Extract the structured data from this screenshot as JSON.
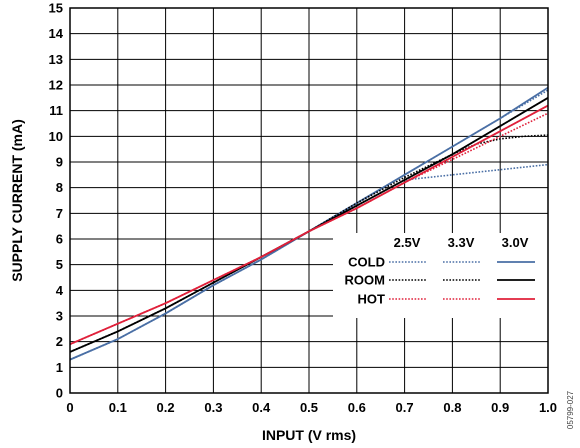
{
  "chart_data": {
    "type": "line",
    "xlabel": "INPUT (V rms)",
    "ylabel": "SUPPLY CURRENT (mA)",
    "xlim": [
      0,
      1.0
    ],
    "ylim": [
      0,
      15
    ],
    "x_ticks": [
      "0",
      "0.1",
      "0.2",
      "0.3",
      "0.4",
      "0.5",
      "0.6",
      "0.7",
      "0.8",
      "0.9",
      "1.0"
    ],
    "y_ticks": [
      "0",
      "1",
      "2",
      "3",
      "4",
      "5",
      "6",
      "7",
      "8",
      "9",
      "10",
      "11",
      "12",
      "13",
      "14",
      "15"
    ],
    "grid": true,
    "legend": {
      "placement": "center-right",
      "column_headers": [
        "2.5V",
        "3.3V",
        "3.0V"
      ],
      "row_labels": [
        "COLD",
        "ROOM",
        "HOT"
      ]
    },
    "colors": {
      "cold": "#4a6fa5",
      "room": "#000000",
      "hot": "#e0203a"
    },
    "series": [
      {
        "temperature": "COLD",
        "supply": "2.5V",
        "style": "dotted",
        "x": [
          0,
          0.1,
          0.2,
          0.3,
          0.4,
          0.5,
          0.6,
          0.7,
          0.75,
          0.8,
          0.9,
          1.0
        ],
        "y": [
          1.3,
          2.1,
          3.1,
          4.2,
          5.2,
          6.3,
          7.3,
          8.3,
          8.4,
          8.5,
          8.7,
          8.9
        ]
      },
      {
        "temperature": "COLD",
        "supply": "3.3V",
        "style": "dotted",
        "x": [
          0,
          0.1,
          0.2,
          0.3,
          0.4,
          0.5,
          0.6,
          0.7,
          0.8,
          0.9,
          1.0
        ],
        "y": [
          1.3,
          2.1,
          3.1,
          4.2,
          5.2,
          6.3,
          7.4,
          8.5,
          9.6,
          10.7,
          11.8
        ]
      },
      {
        "temperature": "COLD",
        "supply": "3.0V",
        "style": "solid",
        "x": [
          0,
          0.1,
          0.2,
          0.3,
          0.4,
          0.5,
          0.6,
          0.7,
          0.8,
          0.9,
          1.0
        ],
        "y": [
          1.3,
          2.1,
          3.1,
          4.2,
          5.2,
          6.3,
          7.4,
          8.5,
          9.6,
          10.7,
          11.9
        ]
      },
      {
        "temperature": "ROOM",
        "supply": "2.5V",
        "style": "dotted",
        "x": [
          0,
          0.1,
          0.2,
          0.3,
          0.4,
          0.5,
          0.6,
          0.7,
          0.8,
          0.85,
          0.9,
          0.95,
          1.0
        ],
        "y": [
          1.6,
          2.4,
          3.3,
          4.3,
          5.3,
          6.3,
          7.4,
          8.4,
          9.3,
          9.7,
          9.9,
          10.0,
          10.05
        ]
      },
      {
        "temperature": "ROOM",
        "supply": "3.3V",
        "style": "dotted",
        "x": [
          0,
          0.1,
          0.2,
          0.3,
          0.4,
          0.5,
          0.6,
          0.7,
          0.8,
          0.9,
          1.0
        ],
        "y": [
          1.6,
          2.4,
          3.3,
          4.3,
          5.3,
          6.3,
          7.3,
          8.3,
          9.3,
          10.4,
          11.5
        ]
      },
      {
        "temperature": "ROOM",
        "supply": "3.0V",
        "style": "solid",
        "x": [
          0,
          0.1,
          0.2,
          0.3,
          0.4,
          0.5,
          0.6,
          0.7,
          0.8,
          0.9,
          1.0
        ],
        "y": [
          1.6,
          2.4,
          3.3,
          4.3,
          5.3,
          6.3,
          7.3,
          8.3,
          9.3,
          10.4,
          11.5
        ]
      },
      {
        "temperature": "HOT",
        "supply": "2.5V",
        "style": "dotted",
        "x": [
          0,
          0.1,
          0.2,
          0.3,
          0.4,
          0.5,
          0.6,
          0.7,
          0.8,
          0.9,
          1.0
        ],
        "y": [
          1.9,
          2.7,
          3.5,
          4.4,
          5.3,
          6.3,
          7.2,
          8.2,
          9.1,
          10.0,
          10.9
        ]
      },
      {
        "temperature": "HOT",
        "supply": "3.3V",
        "style": "dotted",
        "x": [
          0,
          0.1,
          0.2,
          0.3,
          0.4,
          0.5,
          0.6,
          0.7,
          0.8,
          0.9,
          1.0
        ],
        "y": [
          1.9,
          2.7,
          3.5,
          4.4,
          5.3,
          6.3,
          7.2,
          8.2,
          9.2,
          10.2,
          11.2
        ]
      },
      {
        "temperature": "HOT",
        "supply": "3.0V",
        "style": "solid",
        "x": [
          0,
          0.1,
          0.2,
          0.3,
          0.4,
          0.5,
          0.6,
          0.7,
          0.8,
          0.9,
          1.0
        ],
        "y": [
          1.9,
          2.7,
          3.5,
          4.4,
          5.3,
          6.3,
          7.2,
          8.2,
          9.2,
          10.2,
          11.2
        ]
      }
    ]
  },
  "figure_code": "05799-027"
}
